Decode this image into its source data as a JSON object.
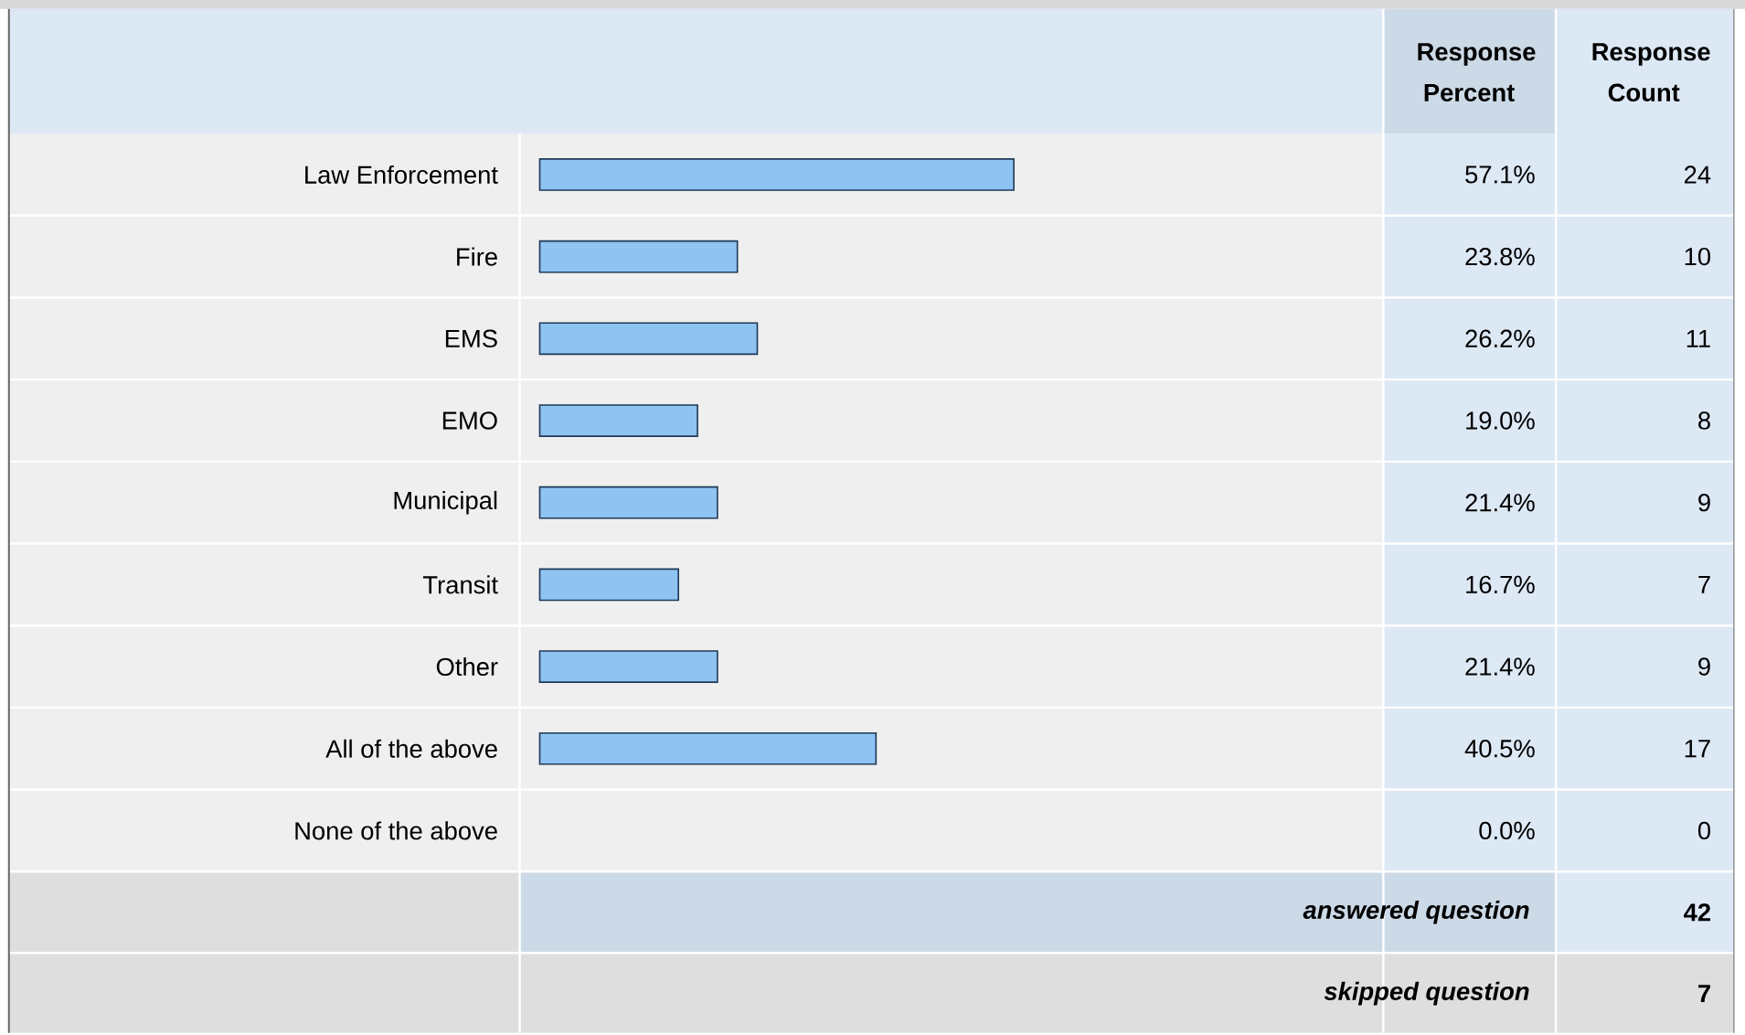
{
  "chart_data": {
    "type": "bar",
    "orientation": "horizontal",
    "categories": [
      "Law Enforcement",
      "Fire",
      "EMS",
      "EMO",
      "Municipal",
      "Transit",
      "Other",
      "All of the above",
      "None of the above"
    ],
    "values": [
      57.1,
      23.8,
      26.2,
      19.0,
      21.4,
      16.7,
      21.4,
      40.5,
      0.0
    ],
    "value_labels": [
      "57.1%",
      "23.8%",
      "26.2%",
      "19.0%",
      "21.4%",
      "16.7%",
      "21.4%",
      "40.5%",
      "0.0%"
    ],
    "color": "#8fc3f2",
    "tick_labels": "y",
    "annotations": [
      "Response Percent",
      "Response Count",
      "24",
      "10",
      "11",
      "8",
      "9",
      "7",
      "9",
      "17",
      "0",
      "answered question",
      "42",
      "skipped question",
      "7"
    ]
  }
}
